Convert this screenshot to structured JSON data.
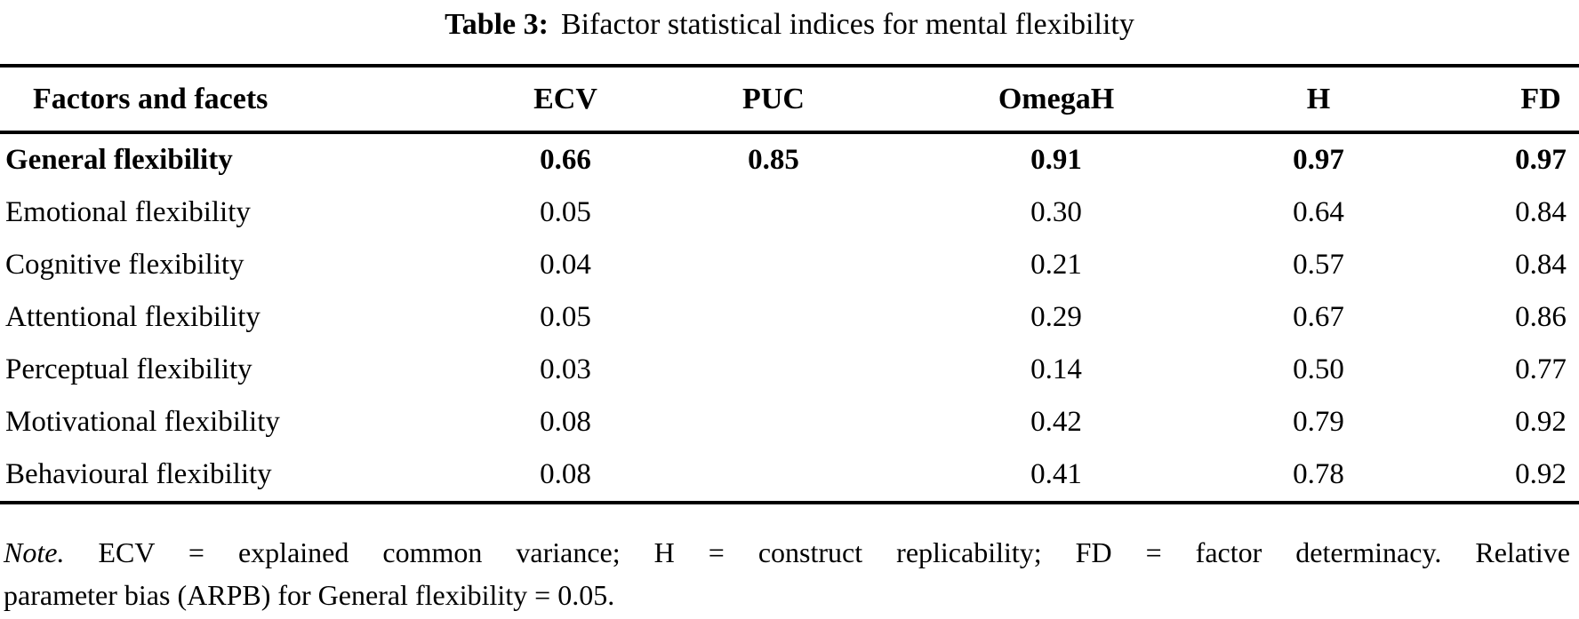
{
  "caption": {
    "label": "Table 3:",
    "text": "Bifactor statistical indices for mental flexibility"
  },
  "columns": [
    "Factors and facets",
    "ECV",
    "PUC",
    "OmegaH",
    "H",
    "FD"
  ],
  "rows": [
    {
      "factor": "General flexibility",
      "ECV": "0.66",
      "PUC": "0.85",
      "OmegaH": "0.91",
      "H": "0.97",
      "FD": "0.97"
    },
    {
      "factor": "Emotional flexibility",
      "ECV": "0.05",
      "PUC": "",
      "OmegaH": "0.30",
      "H": "0.64",
      "FD": "0.84"
    },
    {
      "factor": "Cognitive flexibility",
      "ECV": "0.04",
      "PUC": "",
      "OmegaH": "0.21",
      "H": "0.57",
      "FD": "0.84"
    },
    {
      "factor": "Attentional flexibility",
      "ECV": "0.05",
      "PUC": "",
      "OmegaH": "0.29",
      "H": "0.67",
      "FD": "0.86"
    },
    {
      "factor": "Perceptual flexibility",
      "ECV": "0.03",
      "PUC": "",
      "OmegaH": "0.14",
      "H": "0.50",
      "FD": "0.77"
    },
    {
      "factor": "Motivational flexibility",
      "ECV": "0.08",
      "PUC": "",
      "OmegaH": "0.42",
      "H": "0.79",
      "FD": "0.92"
    },
    {
      "factor": "Behavioural flexibility",
      "ECV": "0.08",
      "PUC": "",
      "OmegaH": "0.41",
      "H": "0.78",
      "FD": "0.92"
    }
  ],
  "note": {
    "label": "Note.",
    "line1_rest": "ECV = explained common variance; H = construct replicability; FD = factor determinacy. Relative",
    "line2": "parameter bias (ARPB) for General flexibility = 0.05."
  },
  "colors": {
    "text": "#000000",
    "background": "#ffffff",
    "rule": "#000000"
  }
}
